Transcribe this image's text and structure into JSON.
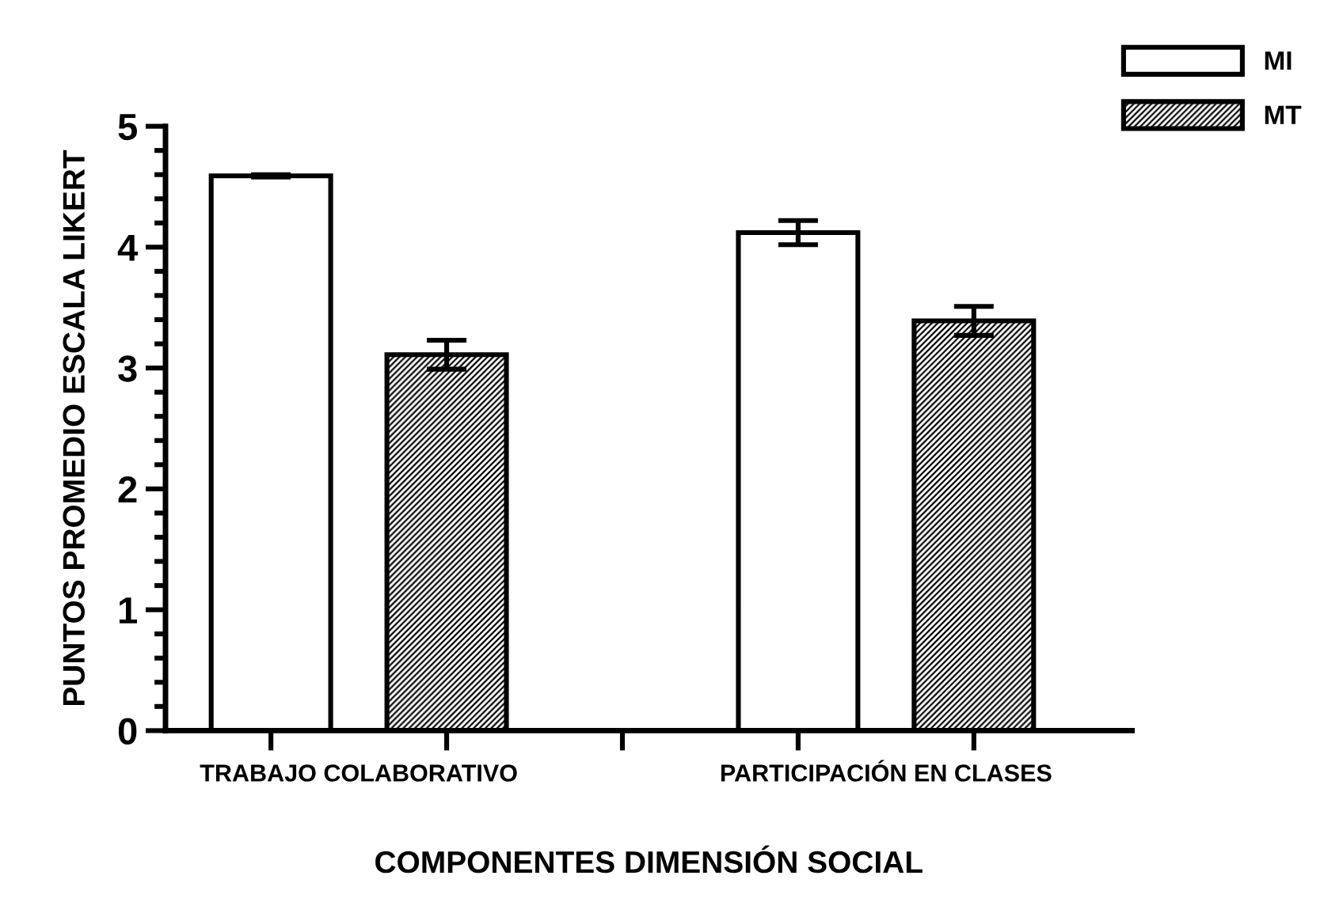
{
  "chart_data": {
    "type": "bar",
    "xlabel": "COMPONENTES DIMENSIÓN SOCIAL",
    "ylabel": "PUNTOS PROMEDIO ESCALA LIKERT",
    "categories": [
      "TRABAJO COLABORATIVO",
      "PARTICIPACIÓN EN CLASES"
    ],
    "series": [
      {
        "name": "MI",
        "color": "#ffffff",
        "values": [
          4.59,
          4.12
        ],
        "errors": [
          0.01,
          0.1
        ]
      },
      {
        "name": "MT",
        "color": "#000000",
        "values": [
          3.11,
          3.39
        ],
        "errors": [
          0.12,
          0.12
        ]
      }
    ],
    "ylim": [
      0,
      5
    ],
    "yticks": [
      0,
      1,
      2,
      3,
      4,
      5
    ],
    "grid": false,
    "legend": "top right"
  }
}
